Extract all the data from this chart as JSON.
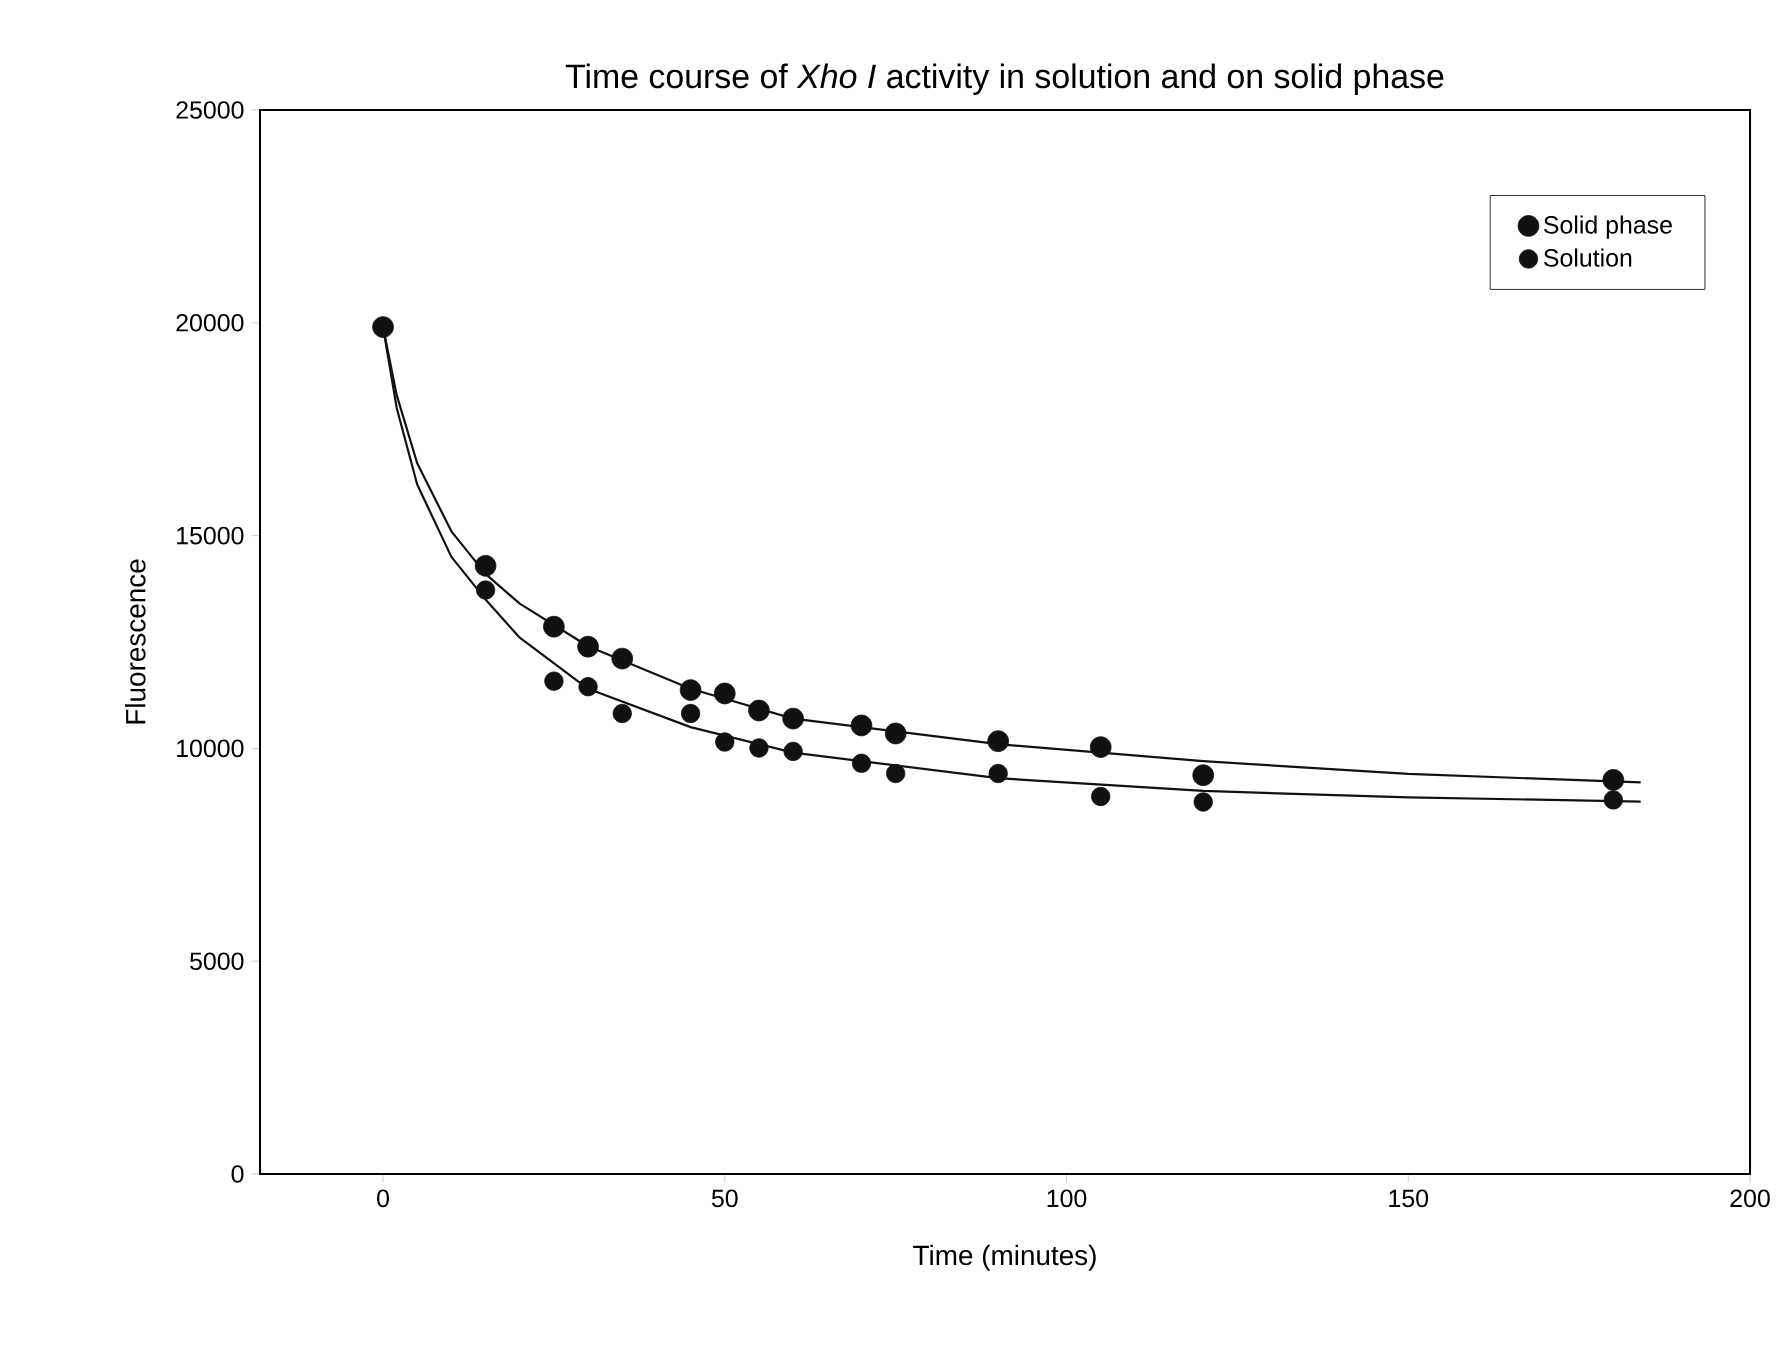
{
  "chart_data": {
    "type": "scatter",
    "title": "Time course of *Xho I* activity in solution and on solid phase",
    "xlabel": "Time (minutes)",
    "ylabel": "Fluorescence",
    "xlim": [
      -18,
      200
    ],
    "ylim": [
      0,
      25000
    ],
    "xticks": [
      0,
      50,
      100,
      150,
      200
    ],
    "yticks": [
      0,
      5000,
      10000,
      15000,
      20000,
      25000
    ],
    "legend": "top right",
    "marker": "circle",
    "grid": false,
    "series": [
      {
        "name": "Solid phase",
        "color": "#111111",
        "x": [
          0,
          15,
          25,
          30,
          35,
          45,
          50,
          55,
          60,
          70,
          75,
          90,
          105,
          120,
          180
        ],
        "values": [
          19900,
          14290,
          12860,
          12390,
          12110,
          11370,
          11290,
          10890,
          10700,
          10540,
          10350,
          10170,
          10030,
          9370,
          9260
        ]
      },
      {
        "name": "Solution",
        "color": "#111111",
        "x": [
          15,
          25,
          30,
          35,
          45,
          50,
          55,
          60,
          70,
          75,
          90,
          105,
          120,
          180
        ],
        "values": [
          13720,
          11580,
          11450,
          10820,
          10820,
          10150,
          10010,
          9930,
          9650,
          9410,
          9410,
          8870,
          8740,
          8790
        ]
      },
      {
        "type": "line",
        "marker": "none",
        "color": "#111111",
        "x": [
          0,
          2,
          5,
          10,
          15,
          20,
          30,
          45,
          60,
          90,
          120,
          150,
          184
        ],
        "values": [
          19900,
          18300,
          16700,
          15100,
          14100,
          13400,
          12400,
          11400,
          10700,
          10100,
          9700,
          9400,
          9200
        ]
      },
      {
        "type": "line",
        "marker": "none",
        "color": "#111111",
        "x": [
          0,
          2,
          5,
          10,
          15,
          20,
          30,
          45,
          60,
          90,
          120,
          150,
          184
        ],
        "values": [
          19900,
          18000,
          16200,
          14500,
          13500,
          12600,
          11400,
          10500,
          9900,
          9300,
          9000,
          8850,
          8750
        ]
      }
    ]
  }
}
